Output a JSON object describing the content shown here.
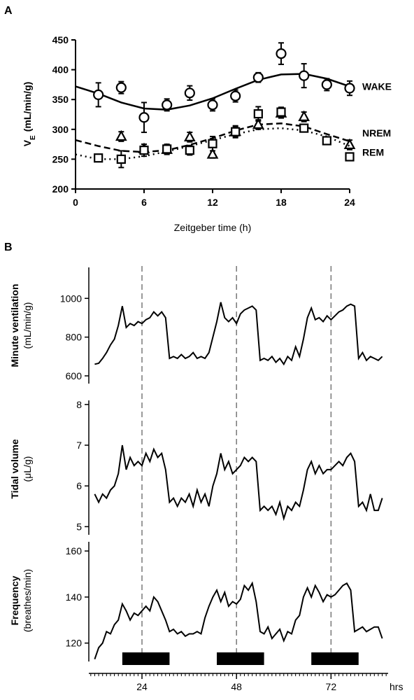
{
  "chart_data": [
    {
      "type": "scatter",
      "panel_label": "A",
      "xlabel": "Zeitgeber time (h)",
      "ylabel": "V",
      "ylabel_sub": "E",
      "ylabel_unit": "(mL/min/g)",
      "xlim": [
        0,
        24
      ],
      "xticks": [
        0,
        6,
        12,
        18,
        24
      ],
      "ylim": [
        200,
        450
      ],
      "yticks": [
        200,
        250,
        300,
        350,
        400,
        450
      ],
      "series": [
        {
          "name": "WAKE",
          "marker": "circle",
          "color": "#000000",
          "x": [
            2,
            4,
            6,
            8,
            10,
            12,
            14,
            16,
            18,
            20,
            22,
            24
          ],
          "values": [
            358,
            370,
            320,
            341,
            361,
            341,
            356,
            387,
            427,
            390,
            375,
            369
          ],
          "errors": [
            20,
            10,
            25,
            10,
            12,
            10,
            10,
            8,
            18,
            20,
            10,
            12
          ],
          "fit": {
            "dash": "solid",
            "x": [
              0,
              2,
              4,
              6,
              8,
              10,
              12,
              14,
              16,
              18,
              20,
              22,
              24
            ],
            "values": [
              372,
              360,
              345,
              335,
              333,
              340,
              352,
              368,
              383,
              392,
              393,
              385,
              372
            ]
          }
        },
        {
          "name": "NREM",
          "marker": "triangle",
          "color": "#000000",
          "x": [
            4,
            6,
            8,
            10,
            12,
            14,
            16,
            18,
            20,
            24
          ],
          "values": [
            288,
            267,
            266,
            287,
            258,
            296,
            308,
            327,
            321,
            274
          ],
          "errors": [
            8,
            8,
            8,
            8,
            6,
            8,
            8,
            8,
            8,
            8
          ],
          "fit": {
            "dash": "dashed",
            "x": [
              0,
              2,
              4,
              6,
              8,
              10,
              12,
              14,
              16,
              18,
              20,
              22,
              24
            ],
            "values": [
              282,
              272,
              264,
              262,
              265,
              274,
              285,
              298,
              308,
              310,
              305,
              292,
              280
            ]
          }
        },
        {
          "name": "REM",
          "marker": "square",
          "color": "#000000",
          "x": [
            2,
            4,
            6,
            8,
            10,
            12,
            14,
            16,
            18,
            20,
            22,
            24
          ],
          "values": [
            252,
            250,
            265,
            267,
            265,
            276,
            296,
            326,
            329,
            302,
            281,
            254
          ],
          "errors": [
            6,
            14,
            10,
            8,
            8,
            12,
            10,
            12,
            8,
            6,
            6,
            6
          ],
          "fit": {
            "dash": "dotted",
            "x": [
              0,
              2,
              4,
              6,
              8,
              10,
              12,
              14,
              16,
              18,
              20,
              22,
              24
            ],
            "values": [
              258,
              250,
              250,
              255,
              263,
              272,
              282,
              292,
              300,
              302,
              298,
              288,
              272
            ]
          }
        }
      ]
    },
    {
      "type": "line",
      "panel_label": "B",
      "xunit": "hrs",
      "xlim": [
        10.5,
        86.5
      ],
      "xticks": [
        24,
        48,
        72
      ],
      "minor_tick_step": 1,
      "vlines": [
        24,
        48,
        72
      ],
      "dark_periods": [
        [
          19,
          31
        ],
        [
          43,
          55
        ],
        [
          67,
          79
        ]
      ],
      "color": "#000000",
      "x": [
        12,
        13,
        14,
        15,
        16,
        17,
        18,
        19,
        20,
        21,
        22,
        23,
        24,
        25,
        26,
        27,
        28,
        29,
        30,
        31,
        32,
        33,
        34,
        35,
        36,
        37,
        38,
        39,
        40,
        41,
        42,
        43,
        44,
        45,
        46,
        47,
        48,
        49,
        50,
        51,
        52,
        53,
        54,
        55,
        56,
        57,
        58,
        59,
        60,
        61,
        62,
        63,
        64,
        65,
        66,
        67,
        68,
        69,
        70,
        71,
        72,
        73,
        74,
        75,
        76,
        77,
        78,
        79,
        80,
        81,
        82,
        83,
        84,
        85
      ],
      "panels": [
        {
          "ylabel": "Minute ventilation",
          "ylabel_unit": "(mL/min/g)",
          "ylim": [
            560,
            1160
          ],
          "yticks": [
            600,
            800,
            1000
          ],
          "values": [
            660,
            665,
            690,
            720,
            760,
            790,
            860,
            960,
            850,
            870,
            860,
            880,
            870,
            890,
            900,
            930,
            910,
            930,
            900,
            690,
            700,
            690,
            710,
            690,
            700,
            720,
            690,
            700,
            690,
            720,
            800,
            880,
            980,
            900,
            880,
            900,
            870,
            920,
            940,
            950,
            960,
            940,
            680,
            690,
            680,
            700,
            670,
            690,
            660,
            700,
            680,
            750,
            700,
            790,
            900,
            950,
            890,
            900,
            880,
            910,
            890,
            910,
            930,
            940,
            960,
            970,
            960,
            690,
            720,
            680,
            700,
            690,
            680,
            700
          ]
        },
        {
          "ylabel": "Tidal volume",
          "ylabel_unit": "(μL/g)",
          "ylim": [
            4.8,
            8.1
          ],
          "yticks": [
            5,
            6,
            7,
            8
          ],
          "values": [
            5.8,
            5.6,
            5.8,
            5.7,
            5.9,
            6.0,
            6.3,
            7.0,
            6.4,
            6.7,
            6.5,
            6.6,
            6.5,
            6.8,
            6.6,
            6.9,
            6.7,
            6.8,
            6.4,
            5.6,
            5.7,
            5.5,
            5.7,
            5.6,
            5.8,
            5.5,
            5.9,
            5.6,
            5.8,
            5.5,
            6.0,
            6.3,
            6.8,
            6.4,
            6.6,
            6.3,
            6.4,
            6.5,
            6.7,
            6.6,
            6.7,
            6.6,
            5.4,
            5.5,
            5.4,
            5.5,
            5.3,
            5.6,
            5.2,
            5.5,
            5.4,
            5.6,
            5.5,
            5.9,
            6.4,
            6.6,
            6.3,
            6.5,
            6.3,
            6.4,
            6.4,
            6.5,
            6.6,
            6.5,
            6.7,
            6.8,
            6.6,
            5.5,
            5.6,
            5.4,
            5.8,
            5.4,
            5.4,
            5.7
          ]
        },
        {
          "ylabel": "Frequency",
          "ylabel_unit": "(breathes/min)",
          "ylim": [
            112,
            164
          ],
          "yticks": [
            120,
            140,
            160
          ],
          "values": [
            113,
            118,
            120,
            125,
            124,
            128,
            130,
            137,
            134,
            130,
            133,
            132,
            134,
            136,
            134,
            140,
            138,
            134,
            130,
            125,
            126,
            124,
            125,
            123,
            124,
            124,
            125,
            124,
            131,
            136,
            140,
            143,
            138,
            142,
            136,
            138,
            137,
            139,
            145,
            143,
            146,
            138,
            125,
            124,
            127,
            122,
            124,
            126,
            121,
            125,
            124,
            130,
            132,
            140,
            144,
            140,
            145,
            142,
            138,
            141,
            140,
            141,
            143,
            145,
            146,
            143,
            125,
            126,
            127,
            125,
            126,
            127,
            127,
            122
          ]
        }
      ]
    }
  ]
}
